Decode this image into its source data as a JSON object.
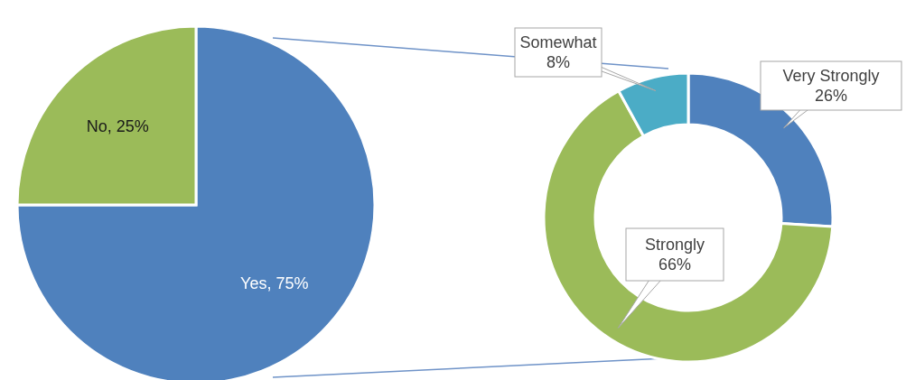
{
  "chart_data": [
    {
      "type": "pie",
      "categories": [
        "Yes",
        "No"
      ],
      "values": [
        75,
        25
      ],
      "colors": [
        "#4f81bd",
        "#9bbb59"
      ],
      "value_labels": [
        "75%",
        "25%"
      ],
      "legend": false
    },
    {
      "type": "donut",
      "categories": [
        "Very Strongly",
        "Strongly",
        "Somewhat"
      ],
      "values": [
        26,
        66,
        8
      ],
      "colors": [
        "#4f81bd",
        "#9bbb59",
        "#4bacc6"
      ],
      "value_labels": [
        "26%",
        "66%",
        "8%"
      ],
      "legend": false
    }
  ]
}
